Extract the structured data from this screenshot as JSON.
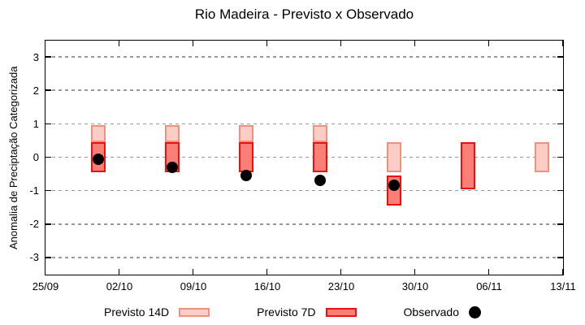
{
  "background": "#ffffff",
  "axis_color": "#000000",
  "chart_data": {
    "type": "candlestick",
    "title": "Rio Madeira - Previsto x Observado",
    "ylabel": "Anomalia de Preciptação Categorizada",
    "ylim": [
      -3.5,
      3.5
    ],
    "yticks": [
      3,
      2,
      1,
      0,
      -1,
      -2,
      -3
    ],
    "x_axis": {
      "start_day": 0,
      "end_day": 49,
      "tick_days": [
        0,
        7,
        14,
        21,
        28,
        35,
        42,
        49
      ],
      "tick_labels": [
        "25/09",
        "02/10",
        "09/10",
        "16/10",
        "23/10",
        "30/10",
        "06/11",
        "13/11"
      ]
    },
    "grid": {
      "horizontal": true,
      "style": "dashed",
      "color": "#999999"
    },
    "legend_position": "bottom-center",
    "series": [
      {
        "name": "Previsto 14D",
        "type": "range-bar",
        "fill": "#fbcdc5",
        "border": "#f0907e",
        "ranges": [
          {
            "day": 5,
            "low": 0.45,
            "high": 0.95
          },
          {
            "day": 12,
            "low": 0.45,
            "high": 0.95
          },
          {
            "day": 19,
            "low": 0.45,
            "high": 0.95
          },
          {
            "day": 26,
            "low": 0.45,
            "high": 0.95
          },
          {
            "day": 33,
            "low": -0.45,
            "high": 0.45
          },
          {
            "day": 47,
            "low": -0.45,
            "high": 0.45
          }
        ]
      },
      {
        "name": "Previsto 7D",
        "type": "range-bar",
        "fill": "#fa7f76",
        "border": "#ee100c",
        "ranges": [
          {
            "day": 5,
            "low": -0.45,
            "high": 0.45
          },
          {
            "day": 12,
            "low": -0.45,
            "high": 0.45
          },
          {
            "day": 19,
            "low": -0.45,
            "high": 0.45
          },
          {
            "day": 26,
            "low": -0.45,
            "high": 0.45
          },
          {
            "day": 33,
            "low": -1.45,
            "high": -0.55
          },
          {
            "day": 40,
            "low": -0.95,
            "high": 0.45
          }
        ]
      },
      {
        "name": "Observado",
        "type": "dot",
        "color": "#000000",
        "points": [
          {
            "day": 5,
            "value": -0.05
          },
          {
            "day": 12,
            "value": -0.3
          },
          {
            "day": 19,
            "value": -0.55
          },
          {
            "day": 26,
            "value": -0.7
          },
          {
            "day": 33,
            "value": -0.85
          }
        ]
      }
    ]
  }
}
